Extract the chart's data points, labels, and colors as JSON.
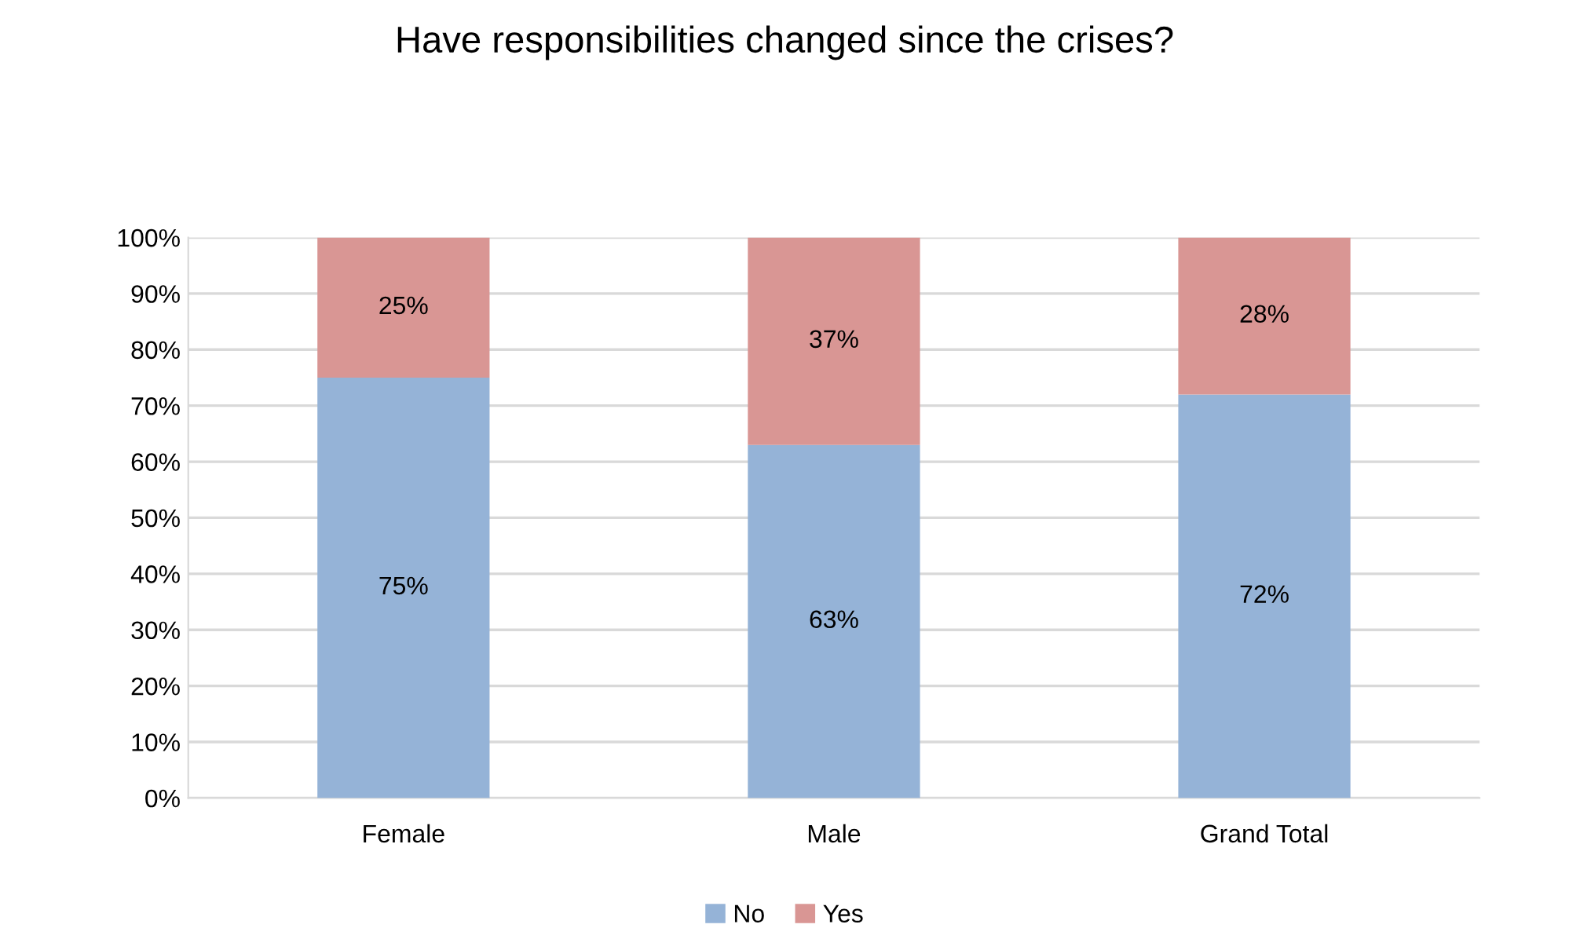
{
  "chart_data": {
    "type": "bar",
    "title": "Have responsibilities changed since the crises?",
    "categories": [
      "Female",
      "Male",
      "Grand Total"
    ],
    "stacked": true,
    "series": [
      {
        "name": "No",
        "color": "#95b3d7",
        "values": [
          75,
          63,
          72
        ],
        "value_labels": [
          "75%",
          "63%",
          "72%"
        ]
      },
      {
        "name": "Yes",
        "color": "#d99694",
        "values": [
          25,
          37,
          28
        ],
        "value_labels": [
          "25%",
          "37%",
          "28%"
        ]
      }
    ],
    "ylim": [
      0,
      100
    ],
    "yticks": [
      {
        "value": 0,
        "label": "0%"
      },
      {
        "value": 10,
        "label": "10%"
      },
      {
        "value": 20,
        "label": "20%"
      },
      {
        "value": 30,
        "label": "30%"
      },
      {
        "value": 40,
        "label": "40%"
      },
      {
        "value": 50,
        "label": "50%"
      },
      {
        "value": 60,
        "label": "60%"
      },
      {
        "value": 70,
        "label": "70%"
      },
      {
        "value": 80,
        "label": "80%"
      },
      {
        "value": 90,
        "label": "90%"
      },
      {
        "value": 100,
        "label": "100%"
      }
    ],
    "grid": "y",
    "legend": "bottom"
  }
}
